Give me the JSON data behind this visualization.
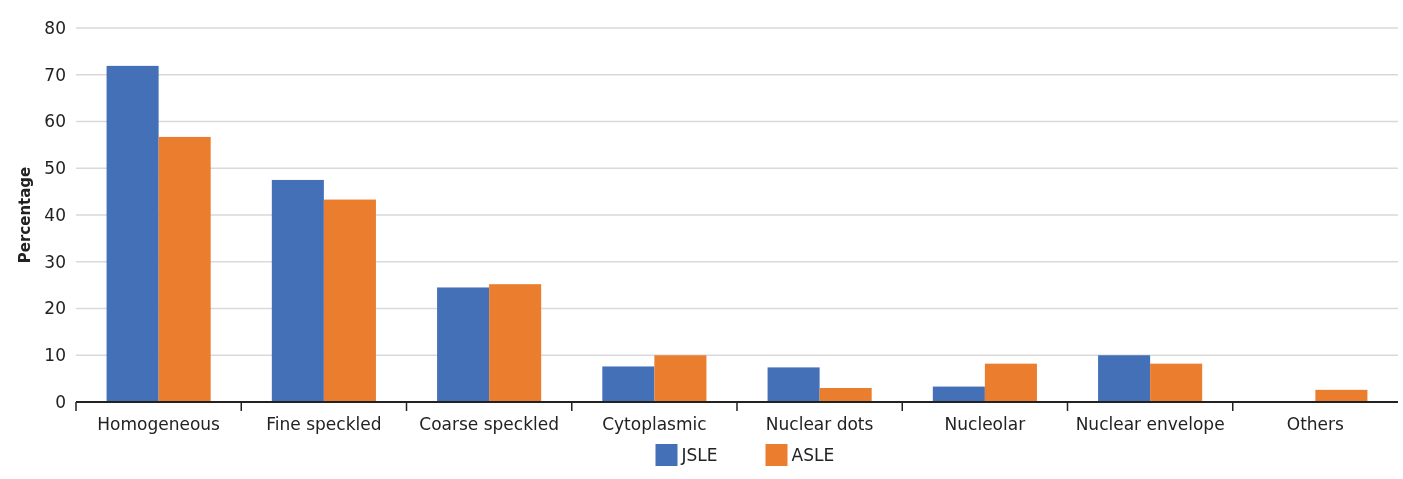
{
  "chart_data": {
    "type": "bar",
    "ylabel": "Percentage",
    "categories": [
      "Homogeneous",
      "Fine speckled",
      "Coarse speckled",
      "Cytoplasmic",
      "Nuclear dots",
      "Nucleolar",
      "Nuclear envelope",
      "Others"
    ],
    "series": [
      {
        "name": "JSLE",
        "color": "#4370b7",
        "values": [
          71.9,
          47.5,
          24.5,
          7.6,
          7.4,
          3.3,
          10.0,
          0
        ]
      },
      {
        "name": "ASLE",
        "color": "#eb7d2f",
        "values": [
          56.7,
          43.3,
          25.2,
          10.0,
          3.0,
          8.2,
          8.2,
          2.6
        ]
      }
    ],
    "ylim": [
      0,
      80
    ],
    "yticks": [
      0,
      10,
      20,
      30,
      40,
      50,
      60,
      70,
      80
    ],
    "grid": "y",
    "legend": "bottom"
  }
}
